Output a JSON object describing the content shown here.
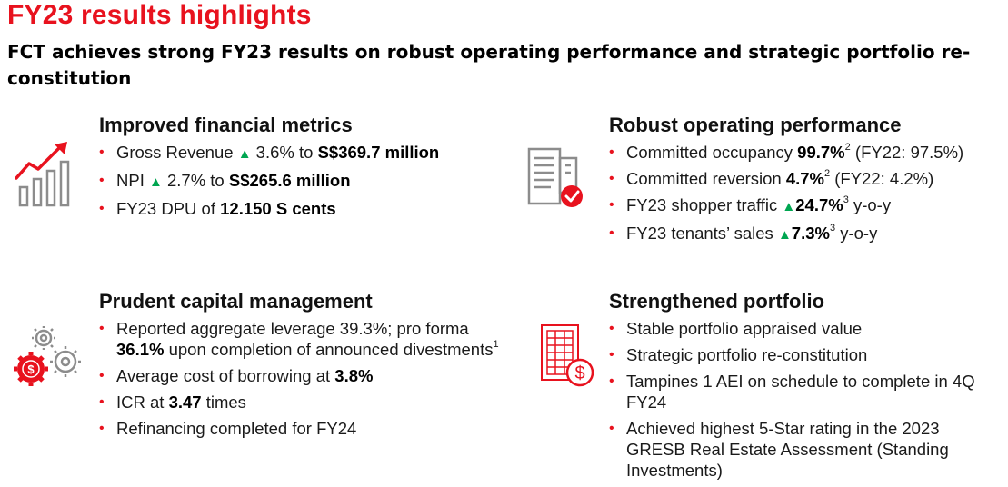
{
  "title": "FY23 results highlights",
  "subtitle": "FCT achieves strong FY23 results on robust operating performance and strategic portfolio re-constitution",
  "bullet_char": "•",
  "up_arrow": "▲",
  "sections": {
    "financial": {
      "heading": "Improved financial metrics",
      "icon": "rising-chart-icon",
      "b1": {
        "pre": "Gross Revenue ",
        "mid": " 3.6% to ",
        "bold": "S$369.7 million"
      },
      "b2": {
        "pre": "NPI ",
        "mid": " 2.7% to ",
        "bold": "S$265.6 million"
      },
      "b3": {
        "pre": "FY23 DPU of ",
        "bold": "12.150 S cents"
      }
    },
    "operating": {
      "heading": "Robust operating performance",
      "icon": "document-check-icon",
      "b1": {
        "pre": "Committed occupancy ",
        "bold": "99.7%",
        "sup": "2",
        "post": " (FY22: 97.5%)"
      },
      "b2": {
        "pre": "Committed reversion ",
        "bold": "4.7%",
        "sup": "2",
        "post": " (FY22: 4.2%)"
      },
      "b3": {
        "pre": "FY23 shopper traffic ",
        "bold": "24.7%",
        "sup": "3",
        "post": " y-o-y"
      },
      "b4": {
        "pre": "FY23 tenants’ sales ",
        "bold": "7.3%",
        "sup": "3",
        "post": " y-o-y"
      }
    },
    "capital": {
      "heading": "Prudent capital management",
      "icon": "gears-dollar-icon",
      "b1": {
        "pre": "Reported aggregate leverage 39.3%; pro forma ",
        "bold": "36.1%",
        "post": " upon completion of announced divestments",
        "sup": "1"
      },
      "b2": {
        "pre": "Average cost of borrowing at ",
        "bold": "3.8%"
      },
      "b3": {
        "pre": "ICR at ",
        "bold": "3.47",
        "post": " times"
      },
      "b4": {
        "pre": "Refinancing completed for FY24"
      }
    },
    "portfolio": {
      "heading": "Strengthened portfolio",
      "icon": "building-dollar-icon",
      "b1": "Stable portfolio appraised value",
      "b2": "Strategic portfolio re-constitution",
      "b3": "Tampines 1 AEI on schedule to complete in 4Q FY24",
      "b4": "Achieved highest 5-Star rating in the 2023 GRESB Real Estate Assessment (Standing Investments)"
    }
  },
  "colors": {
    "accent": "#e8121e",
    "icon_gray": "#8c8c8c",
    "up": "#00a651"
  }
}
